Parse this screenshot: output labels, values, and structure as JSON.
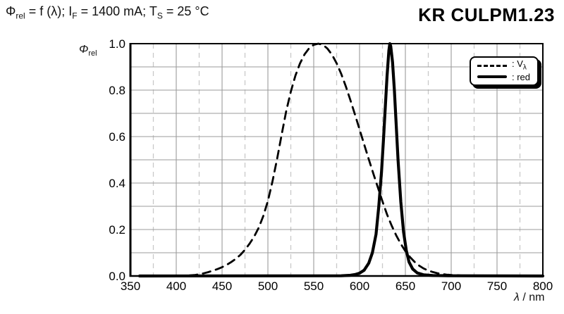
{
  "header": {
    "title": "KR CULPM1.23",
    "condition": {
      "phi": "Φ",
      "phi_sub": "rel",
      "seg1": " = f (λ); I",
      "i_sub": "F",
      "seg2": " = 1400 mA; T",
      "t_sub": "S",
      "seg3": " = 25 °C"
    }
  },
  "chart_labels": {
    "ylabel_symbol": "Φ",
    "ylabel_sub": "rel",
    "xlabel_italic": "λ",
    "xlabel_rest": " / nm"
  },
  "legend": {
    "vlambda_prefix": ": V",
    "vlambda_sub": "λ",
    "red_label": ": red"
  },
  "colors": {
    "curve": "#000000",
    "grid_major": "#9b9b9b",
    "grid_minor": "#c9c9c9",
    "axis": "#000000",
    "background": "#ffffff"
  },
  "chart_data": {
    "type": "line",
    "xlabel": "λ / nm",
    "ylabel": "Φrel",
    "xlim": [
      350,
      800
    ],
    "ylim": [
      0.0,
      1.0
    ],
    "x_major_tick_step": 50,
    "x_minor_grid_step": 25,
    "y_major_tick_step": 0.2,
    "y_minor_grid_step": 0.1,
    "x_tick_labels": [
      "350",
      "400",
      "450",
      "500",
      "550",
      "600",
      "650",
      "700",
      "750",
      "800"
    ],
    "y_tick_labels": [
      "0.0",
      "0.2",
      "0.4",
      "0.6",
      "0.8",
      "1.0"
    ],
    "grid": true,
    "legend_position": "top-right",
    "series": [
      {
        "name": "Vλ",
        "line_style": "dashed",
        "color": "#000000",
        "points": [
          [
            400,
            0.0004
          ],
          [
            410,
            0.0012
          ],
          [
            420,
            0.004
          ],
          [
            425,
            0.0073
          ],
          [
            430,
            0.0116
          ],
          [
            435,
            0.0168
          ],
          [
            440,
            0.023
          ],
          [
            445,
            0.0298
          ],
          [
            450,
            0.038
          ],
          [
            455,
            0.048
          ],
          [
            460,
            0.06
          ],
          [
            465,
            0.0739
          ],
          [
            470,
            0.091
          ],
          [
            475,
            0.1126
          ],
          [
            480,
            0.139
          ],
          [
            485,
            0.1693
          ],
          [
            490,
            0.208
          ],
          [
            495,
            0.2586
          ],
          [
            500,
            0.323
          ],
          [
            505,
            0.4073
          ],
          [
            510,
            0.503
          ],
          [
            515,
            0.6082
          ],
          [
            520,
            0.71
          ],
          [
            525,
            0.7932
          ],
          [
            530,
            0.862
          ],
          [
            535,
            0.9149
          ],
          [
            540,
            0.954
          ],
          [
            545,
            0.9803
          ],
          [
            550,
            0.995
          ],
          [
            555,
            1.0
          ],
          [
            560,
            0.995
          ],
          [
            565,
            0.9786
          ],
          [
            570,
            0.952
          ],
          [
            575,
            0.9154
          ],
          [
            580,
            0.87
          ],
          [
            585,
            0.8163
          ],
          [
            590,
            0.757
          ],
          [
            595,
            0.6949
          ],
          [
            600,
            0.631
          ],
          [
            605,
            0.5668
          ],
          [
            610,
            0.503
          ],
          [
            615,
            0.4412
          ],
          [
            620,
            0.381
          ],
          [
            625,
            0.321
          ],
          [
            630,
            0.265
          ],
          [
            635,
            0.217
          ],
          [
            640,
            0.175
          ],
          [
            645,
            0.1382
          ],
          [
            650,
            0.107
          ],
          [
            655,
            0.0816
          ],
          [
            660,
            0.061
          ],
          [
            665,
            0.0446
          ],
          [
            670,
            0.032
          ],
          [
            675,
            0.0232
          ],
          [
            680,
            0.017
          ],
          [
            685,
            0.0119
          ],
          [
            690,
            0.0082
          ],
          [
            695,
            0.0057
          ],
          [
            700,
            0.0041
          ],
          [
            710,
            0.0021
          ],
          [
            720,
            0.001
          ]
        ]
      },
      {
        "name": "red",
        "line_style": "solid-thick",
        "color": "#000000",
        "points": [
          [
            360,
            0
          ],
          [
            580,
            0.001
          ],
          [
            590,
            0.003
          ],
          [
            595,
            0.006
          ],
          [
            600,
            0.012
          ],
          [
            605,
            0.025
          ],
          [
            610,
            0.055
          ],
          [
            614,
            0.1
          ],
          [
            618,
            0.18
          ],
          [
            621,
            0.3
          ],
          [
            624,
            0.45
          ],
          [
            626,
            0.58
          ],
          [
            628,
            0.72
          ],
          [
            630,
            0.86
          ],
          [
            632,
            0.97
          ],
          [
            633,
            1.0
          ],
          [
            634,
            0.99
          ],
          [
            636,
            0.92
          ],
          [
            638,
            0.8
          ],
          [
            640,
            0.65
          ],
          [
            642,
            0.5
          ],
          [
            645,
            0.32
          ],
          [
            648,
            0.19
          ],
          [
            651,
            0.11
          ],
          [
            654,
            0.06
          ],
          [
            658,
            0.03
          ],
          [
            663,
            0.013
          ],
          [
            670,
            0.005
          ],
          [
            680,
            0.002
          ],
          [
            700,
            0.001
          ],
          [
            800,
            0
          ]
        ]
      }
    ]
  }
}
